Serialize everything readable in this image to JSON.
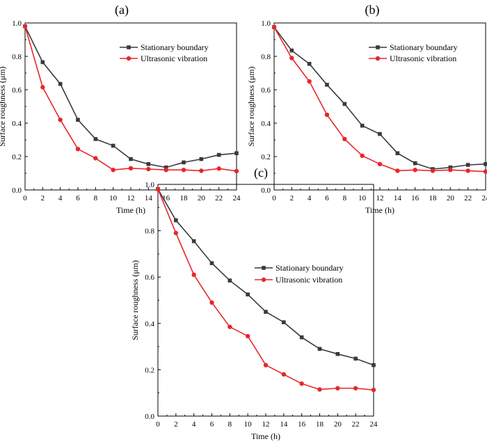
{
  "chart_data": [
    {
      "type": "line",
      "title": "(a)",
      "xlabel": "Time (h)",
      "ylabel": "Surface roughness (μm)",
      "xlim": [
        0,
        24
      ],
      "ylim": [
        0,
        1.0
      ],
      "xticks": [
        "0",
        "2",
        "4",
        "6",
        "8",
        "10",
        "12",
        "14",
        "16",
        "18",
        "20",
        "22",
        "24"
      ],
      "yticks": [
        "0.0",
        "0.2",
        "0.4",
        "0.6",
        "0.8",
        "1.0"
      ],
      "legend_position": "top-right",
      "x": [
        0,
        2,
        4,
        6,
        8,
        10,
        12,
        14,
        16,
        18,
        20,
        22,
        24
      ],
      "series": [
        {
          "name": "Stationary boundary",
          "color": "#3a3a3a",
          "marker": "square",
          "values": [
            0.98,
            0.765,
            0.635,
            0.42,
            0.305,
            0.265,
            0.185,
            0.155,
            0.135,
            0.165,
            0.185,
            0.21,
            0.22
          ]
        },
        {
          "name": "Ultrasonic vibration",
          "color": "#e8262a",
          "marker": "circle",
          "values": [
            0.98,
            0.615,
            0.42,
            0.245,
            0.19,
            0.12,
            0.13,
            0.125,
            0.12,
            0.12,
            0.115,
            0.128,
            0.113
          ]
        }
      ]
    },
    {
      "type": "line",
      "title": "(b)",
      "xlabel": "Time (h)",
      "ylabel": "Surface roughness (μm)",
      "xlim": [
        0,
        24
      ],
      "ylim": [
        0,
        1.0
      ],
      "xticks": [
        "0",
        "2",
        "4",
        "6",
        "8",
        "10",
        "12",
        "14",
        "16",
        "18",
        "20",
        "22",
        "24"
      ],
      "yticks": [
        "0.0",
        "0.2",
        "0.4",
        "0.6",
        "0.8",
        "1.0"
      ],
      "legend_position": "top-right",
      "x": [
        0,
        2,
        4,
        6,
        8,
        10,
        12,
        14,
        16,
        18,
        20,
        22,
        24
      ],
      "series": [
        {
          "name": "Stationary boundary",
          "color": "#3a3a3a",
          "marker": "square",
          "values": [
            0.975,
            0.835,
            0.755,
            0.63,
            0.515,
            0.385,
            0.335,
            0.22,
            0.16,
            0.125,
            0.135,
            0.15,
            0.155
          ]
        },
        {
          "name": "Ultrasonic vibration",
          "color": "#e8262a",
          "marker": "circle",
          "values": [
            0.975,
            0.79,
            0.65,
            0.45,
            0.305,
            0.205,
            0.155,
            0.115,
            0.12,
            0.115,
            0.12,
            0.115,
            0.11
          ]
        }
      ]
    },
    {
      "type": "line",
      "title": "(c)",
      "xlabel": "Time (h)",
      "ylabel": "Surface roughness (μm)",
      "xlim": [
        0,
        24
      ],
      "ylim": [
        0,
        1.0
      ],
      "xticks": [
        "0",
        "2",
        "4",
        "6",
        "8",
        "10",
        "12",
        "14",
        "16",
        "18",
        "20",
        "22",
        "24"
      ],
      "yticks": [
        "0.0",
        "0.2",
        "0.4",
        "0.6",
        "0.8",
        "1.0"
      ],
      "legend_position": "top-right",
      "x": [
        0,
        2,
        4,
        6,
        8,
        10,
        12,
        14,
        16,
        18,
        20,
        22,
        24
      ],
      "series": [
        {
          "name": "Stationary boundary",
          "color": "#3a3a3a",
          "marker": "square",
          "values": [
            0.98,
            0.845,
            0.755,
            0.66,
            0.585,
            0.525,
            0.45,
            0.405,
            0.34,
            0.29,
            0.268,
            0.248,
            0.22
          ]
        },
        {
          "name": "Ultrasonic vibration",
          "color": "#e8262a",
          "marker": "circle",
          "values": [
            0.98,
            0.79,
            0.61,
            0.49,
            0.385,
            0.345,
            0.22,
            0.18,
            0.14,
            0.115,
            0.12,
            0.12,
            0.113
          ]
        }
      ]
    }
  ]
}
